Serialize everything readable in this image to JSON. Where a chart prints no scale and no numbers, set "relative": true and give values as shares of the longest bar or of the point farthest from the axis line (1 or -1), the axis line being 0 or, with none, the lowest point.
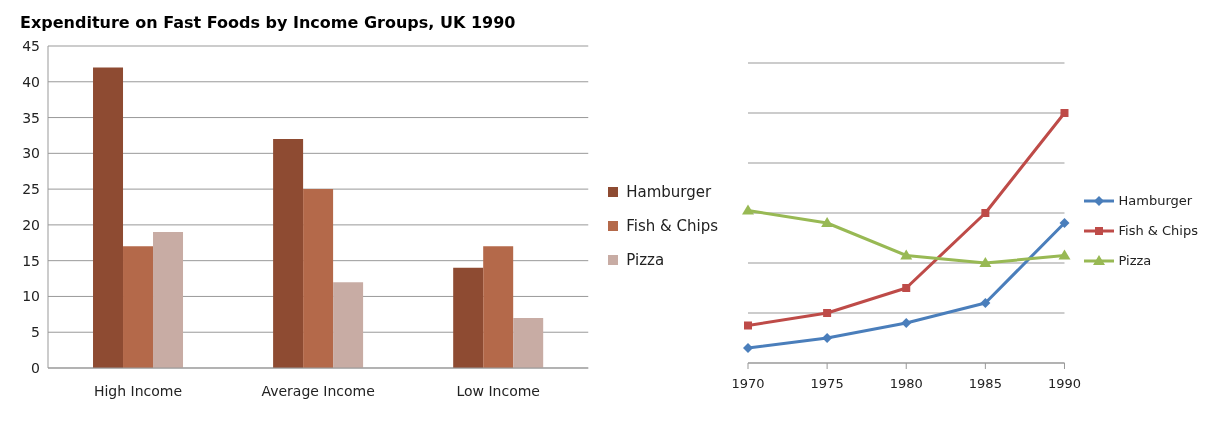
{
  "chart_data": [
    {
      "type": "bar",
      "title": "Expenditure on Fast Foods by Income Groups, UK 1990",
      "categories": [
        "High Income",
        "Average Income",
        "Low Income"
      ],
      "series": [
        {
          "name": "Hamburger",
          "color": "#8e4b32",
          "values": [
            42,
            32,
            14
          ]
        },
        {
          "name": "Fish & Chips",
          "color": "#b4694a",
          "values": [
            17,
            25,
            17
          ]
        },
        {
          "name": "Pizza",
          "color": "#c8aca4",
          "values": [
            19,
            12,
            7
          ]
        }
      ],
      "ylim": [
        0,
        45
      ],
      "yticks": [
        0,
        5,
        10,
        15,
        20,
        25,
        30,
        35,
        40,
        45
      ],
      "grid": "y",
      "legend": "right"
    },
    {
      "type": "line",
      "relative": true,
      "categories": [
        "1970",
        "1975",
        "1980",
        "1985",
        "1990"
      ],
      "series": [
        {
          "name": "Hamburger",
          "color": "#4a7ebb",
          "marker": "diamond",
          "values": [
            0.06,
            0.1,
            0.16,
            0.24,
            0.56
          ]
        },
        {
          "name": "Fish & Chips",
          "color": "#be4b48",
          "marker": "square",
          "values": [
            0.15,
            0.2,
            0.3,
            0.6,
            1
          ]
        },
        {
          "name": "Pizza",
          "color": "#98b954",
          "marker": "triangle",
          "values": [
            0.61,
            0.56,
            0.43,
            0.4,
            0.43
          ]
        }
      ],
      "grid": "y",
      "legend": "right",
      "line_style": "solid"
    }
  ]
}
